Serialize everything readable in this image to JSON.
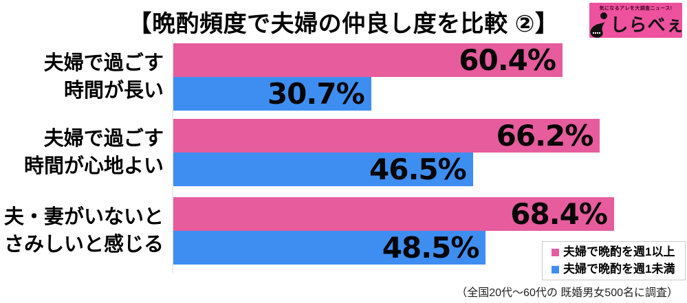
{
  "title": "【晩酌頻度で夫婦の仲良し度を比較 ②】",
  "logo": {
    "tagline": "気になるアレを大調査ニュース!",
    "name": "しらべぇ",
    "bg_color": "#ee519e"
  },
  "chart_data": {
    "type": "bar",
    "orientation": "horizontal",
    "title": "晩酌頻度で夫婦の仲良し度を比較 ②",
    "categories": [
      [
        "夫婦で過ごす",
        "時間が長い"
      ],
      [
        "夫婦で過ごす",
        "時間が心地よい"
      ],
      [
        "夫・妻がいないと",
        "さみしいと感じる"
      ]
    ],
    "series": [
      {
        "name": "夫婦で晩酌を週1以上",
        "color": "#e65c9d",
        "values": [
          60.4,
          66.2,
          68.4
        ]
      },
      {
        "name": "夫婦で晩酌を週1未満",
        "color": "#3e8ef2",
        "values": [
          30.7,
          46.5,
          48.5
        ]
      }
    ],
    "value_suffix": "%",
    "xlim": [
      0,
      74.7
    ],
    "grid": false,
    "legend_position": "bottom-right"
  },
  "footnote": "（全国20代～60代の 既婚男女500名に調査）"
}
